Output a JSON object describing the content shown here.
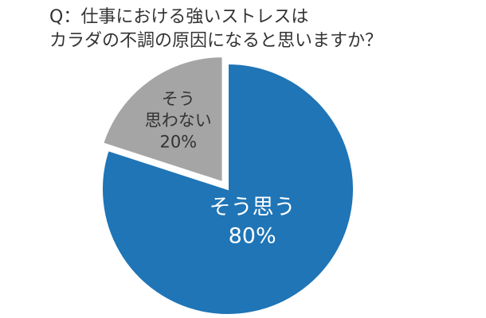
{
  "chart_data": {
    "type": "pie",
    "title": [
      "Q：仕事における強いストレスは",
      "カラダの不調の原因になると思いますか？"
    ],
    "categories": [
      [
        "そう思う"
      ],
      [
        "そう",
        "思わない"
      ]
    ],
    "values": [
      80,
      20
    ],
    "value_labels": [
      "80%",
      "20%"
    ],
    "colors": [
      "#1f75b6",
      "#a5a5a5"
    ],
    "label_colors": [
      "#ffffff",
      "#333333"
    ],
    "exploded": [
      false,
      true
    ]
  }
}
